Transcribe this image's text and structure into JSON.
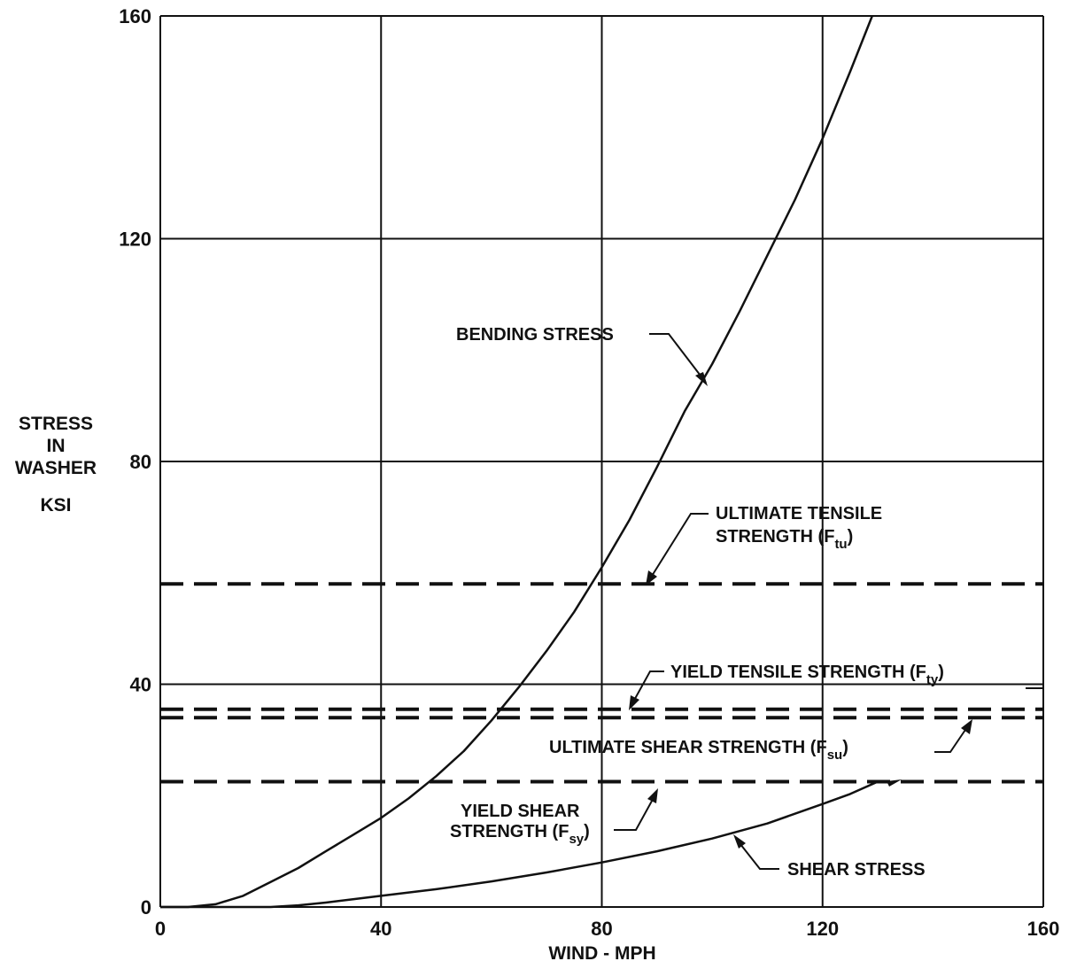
{
  "chart_data": {
    "type": "line",
    "title": "",
    "xlabel": "WIND - MPH",
    "ylabel_lines": [
      "STRESS",
      "IN",
      "WASHER",
      "KSI"
    ],
    "xlim": [
      0,
      160
    ],
    "ylim": [
      0,
      160
    ],
    "xticks": [
      "0",
      "40",
      "80",
      "120",
      "160"
    ],
    "yticks": [
      "0",
      "40",
      "80",
      "120",
      "160"
    ],
    "grid": true,
    "series": [
      {
        "name": "BENDING STRESS",
        "style": "solid",
        "x": [
          0,
          5,
          10,
          15,
          20,
          25,
          30,
          35,
          40,
          45,
          50,
          55,
          60,
          65,
          70,
          75,
          80,
          85,
          90,
          95,
          100,
          105,
          110,
          115,
          120,
          125,
          129
        ],
        "y": [
          0,
          0,
          0.5,
          2,
          4.5,
          7,
          10,
          13,
          16,
          19.5,
          23.5,
          28,
          33.5,
          39.5,
          46,
          53,
          61,
          69.5,
          79,
          89,
          97.5,
          107,
          117,
          127,
          138,
          150,
          160
        ]
      },
      {
        "name": "SHEAR STRESS",
        "style": "solid",
        "x": [
          0,
          20,
          25,
          30,
          40,
          50,
          60,
          70,
          80,
          90,
          100,
          110,
          120,
          125,
          130
        ],
        "y": [
          0,
          0,
          0.3,
          0.8,
          2,
          3.2,
          4.6,
          6.2,
          8,
          10,
          12.3,
          15,
          18.5,
          20.3,
          22.5
        ]
      },
      {
        "name": "ULTIMATE TENSILE STRENGTH (F",
        "sub": "tu",
        "suffix": ")",
        "style": "dashed",
        "x": [
          0,
          160
        ],
        "y": [
          58,
          58
        ]
      },
      {
        "name": "YIELD TENSILE STRENGTH (F",
        "sub": "ty",
        "suffix": ")",
        "style": "dashed",
        "x": [
          0,
          160
        ],
        "y": [
          35.5,
          35.5
        ]
      },
      {
        "name": "ULTIMATE SHEAR STRENGTH (F",
        "sub": "su",
        "suffix": ")",
        "style": "dashed",
        "x": [
          0,
          160
        ],
        "y": [
          34,
          34
        ]
      },
      {
        "name": "YIELD SHEAR STRENGTH (F",
        "sub": "sy",
        "suffix": ")",
        "style": "dashed",
        "x": [
          0,
          160
        ],
        "y": [
          22.5,
          22.5
        ]
      }
    ],
    "annotations": {
      "bending": "BENDING STRESS",
      "shear": "SHEAR STRESS",
      "ftu_line1": "ULTIMATE TENSILE",
      "ftu_line2": "STRENGTH (F",
      "ftu_sub": "tu",
      "fty_text": "YIELD TENSILE STRENGTH (F",
      "fty_sub": "ty",
      "fsu_text": "ULTIMATE SHEAR STRENGTH (F",
      "fsu_sub": "su",
      "fsy_line1": "YIELD SHEAR",
      "fsy_line2": "STRENGTH (F",
      "fsy_sub": "sy",
      "close_paren": ")"
    }
  }
}
